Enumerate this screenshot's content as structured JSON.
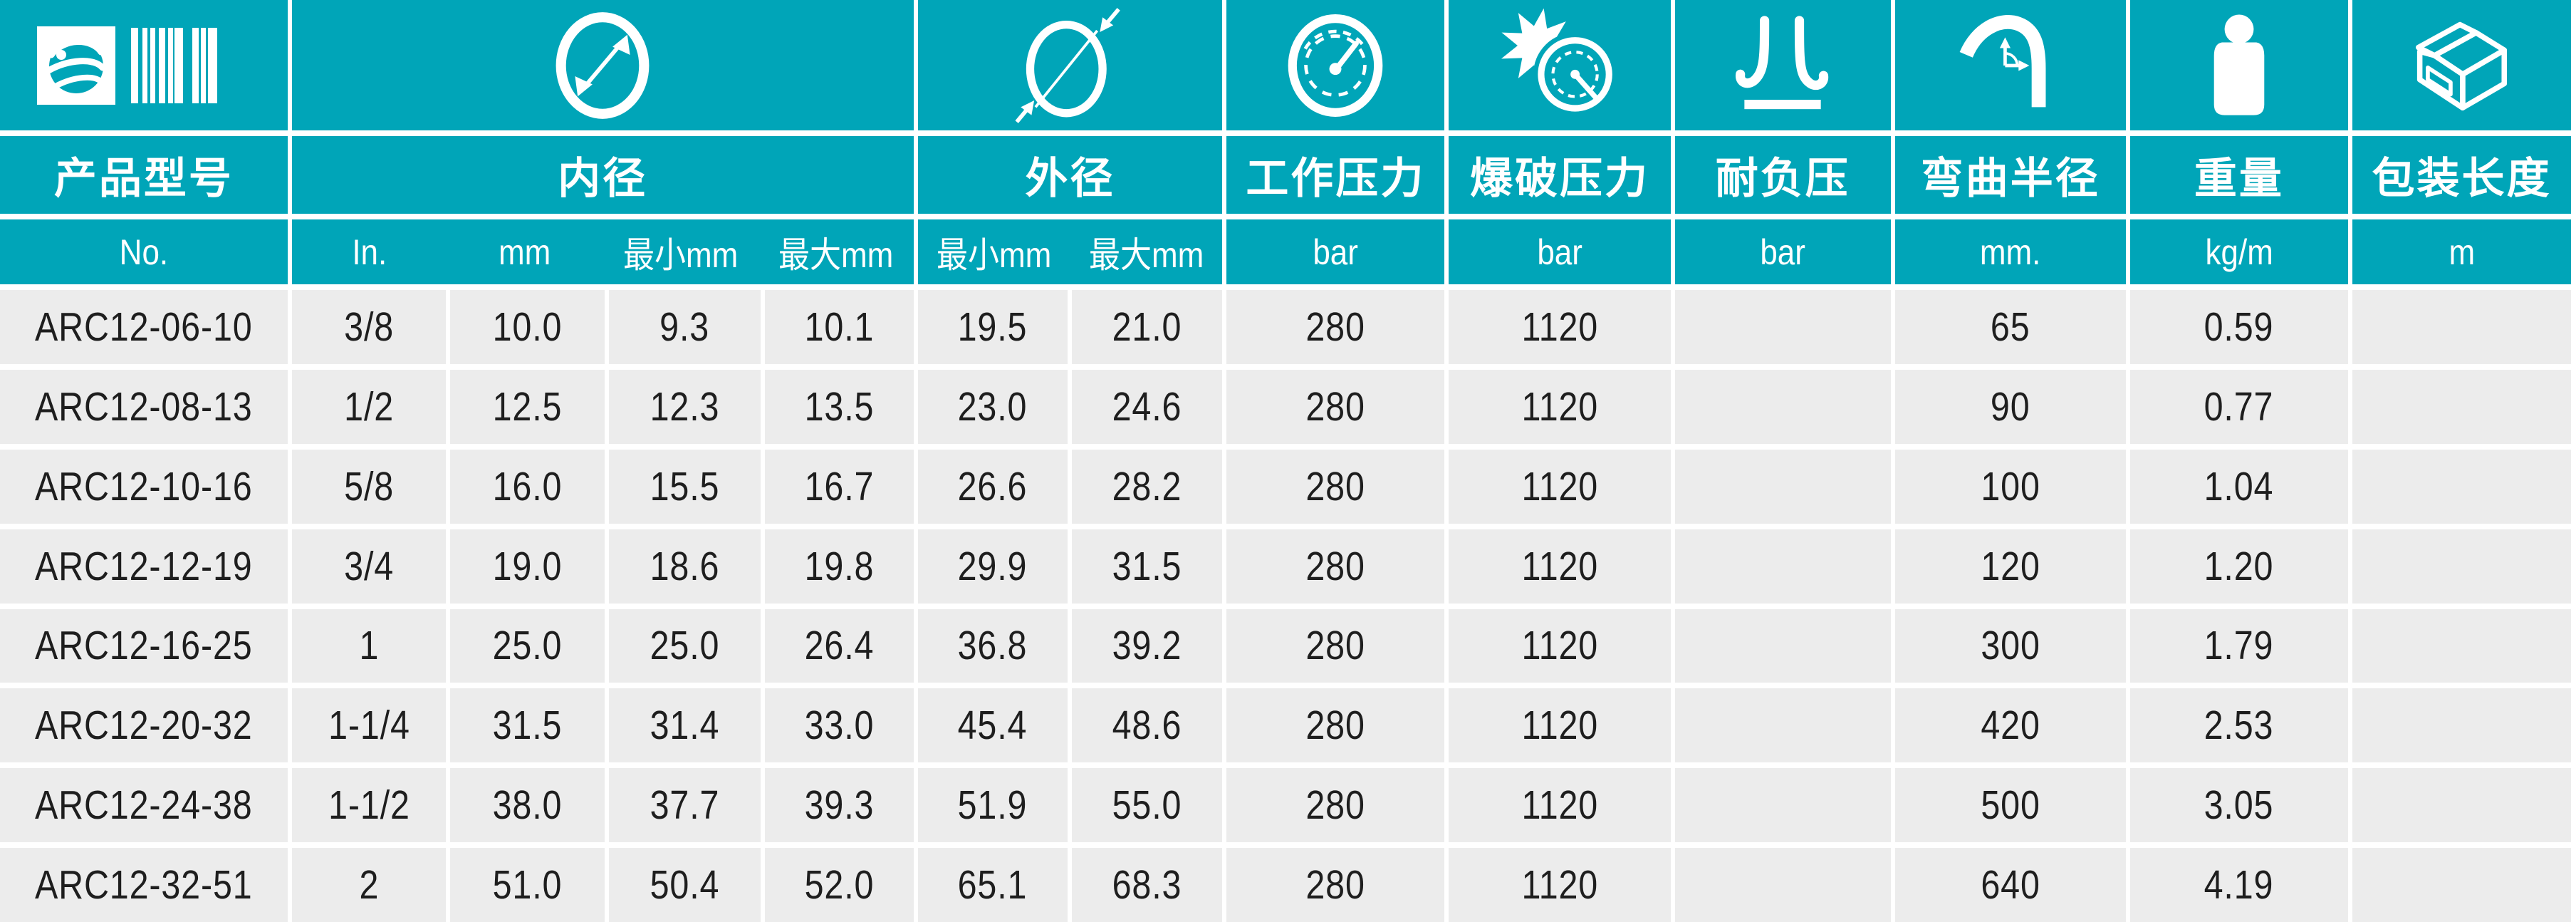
{
  "colors": {
    "teal": "#00a5b8",
    "cell_gray": "#ececec",
    "text": "#1e1e1e",
    "header_text": "#ffffff"
  },
  "table": {
    "groups": [
      {
        "label": "产品型号",
        "icon": "barcode-logo-icon",
        "units": [
          "No."
        ]
      },
      {
        "label": "内径",
        "icon": "inner-diameter-icon",
        "units": [
          "In.",
          "mm",
          "最小mm",
          "最大mm"
        ]
      },
      {
        "label": "外径",
        "icon": "outer-diameter-icon",
        "units": [
          "最小mm",
          "最大mm"
        ]
      },
      {
        "label": "工作压力",
        "icon": "pressure-gauge-icon",
        "units": [
          "bar"
        ]
      },
      {
        "label": "爆破压力",
        "icon": "burst-pressure-icon",
        "units": [
          "bar"
        ]
      },
      {
        "label": "耐负压",
        "icon": "vacuum-resistance-icon",
        "units": [
          "bar"
        ]
      },
      {
        "label": "弯曲半径",
        "icon": "bend-radius-icon",
        "units": [
          "mm."
        ]
      },
      {
        "label": "重量",
        "icon": "weight-icon",
        "units": [
          "kg/m"
        ]
      },
      {
        "label": "包装长度",
        "icon": "package-length-icon",
        "units": [
          "m"
        ]
      }
    ],
    "column_keys": [
      "model",
      "id_in",
      "id_mm",
      "id_min_mm",
      "id_max_mm",
      "od_min_mm",
      "od_max_mm",
      "working_pressure_bar",
      "burst_pressure_bar",
      "vacuum_bar",
      "bend_radius_mm",
      "weight_kg_m",
      "package_length_m"
    ],
    "rows": [
      [
        "ARC12-06-10",
        "3/8",
        "10.0",
        "9.3",
        "10.1",
        "19.5",
        "21.0",
        "280",
        "1120",
        "",
        "65",
        "0.59",
        ""
      ],
      [
        "ARC12-08-13",
        "1/2",
        "12.5",
        "12.3",
        "13.5",
        "23.0",
        "24.6",
        "280",
        "1120",
        "",
        "90",
        "0.77",
        ""
      ],
      [
        "ARC12-10-16",
        "5/8",
        "16.0",
        "15.5",
        "16.7",
        "26.6",
        "28.2",
        "280",
        "1120",
        "",
        "100",
        "1.04",
        ""
      ],
      [
        "ARC12-12-19",
        "3/4",
        "19.0",
        "18.6",
        "19.8",
        "29.9",
        "31.5",
        "280",
        "1120",
        "",
        "120",
        "1.20",
        ""
      ],
      [
        "ARC12-16-25",
        "1",
        "25.0",
        "25.0",
        "26.4",
        "36.8",
        "39.2",
        "280",
        "1120",
        "",
        "300",
        "1.79",
        ""
      ],
      [
        "ARC12-20-32",
        "1-1/4",
        "31.5",
        "31.4",
        "33.0",
        "45.4",
        "48.6",
        "280",
        "1120",
        "",
        "420",
        "2.53",
        ""
      ],
      [
        "ARC12-24-38",
        "1-1/2",
        "38.0",
        "37.7",
        "39.3",
        "51.9",
        "55.0",
        "280",
        "1120",
        "",
        "500",
        "3.05",
        ""
      ],
      [
        "ARC12-32-51",
        "2",
        "51.0",
        "50.4",
        "52.0",
        "65.1",
        "68.3",
        "280",
        "1120",
        "",
        "640",
        "4.19",
        ""
      ]
    ]
  }
}
